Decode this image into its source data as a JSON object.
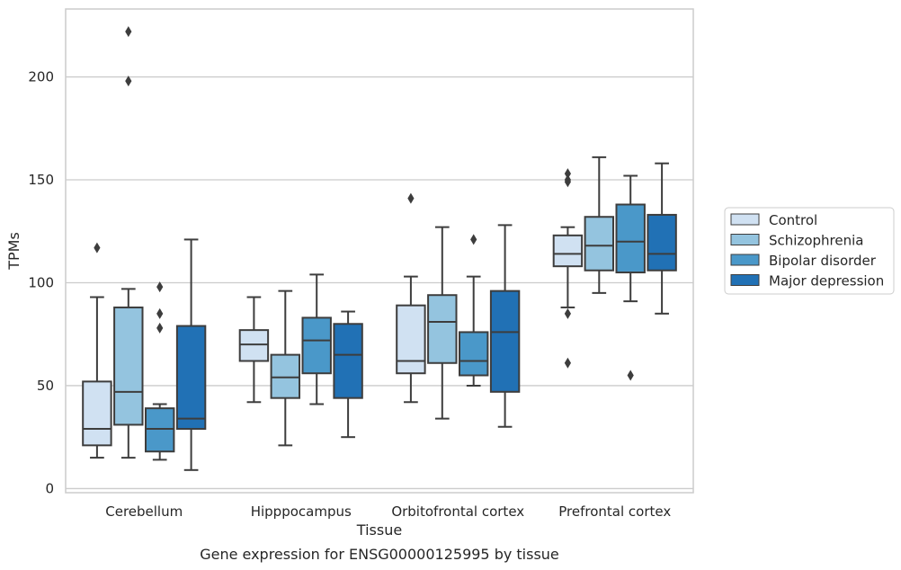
{
  "chart_data": {
    "type": "box",
    "title": "Gene expression for ENSG00000125995 by tissue",
    "xlabel": "Tissue",
    "ylabel": "TPMs",
    "ylim": [
      -2,
      233
    ],
    "yticks": [
      0,
      50,
      100,
      150,
      200
    ],
    "grid": "horizontal",
    "legend_position": "right",
    "categories": [
      "Cerebellum",
      "Hipppocampus",
      "Orbitofrontal cortex",
      "Prefrontal cortex"
    ],
    "series": [
      {
        "name": "Control",
        "color": "#d0e1f2",
        "boxes": [
          {
            "whislo": 15,
            "q1": 21,
            "med": 29,
            "q3": 52,
            "whishi": 93,
            "fliers": [
              117
            ]
          },
          {
            "whislo": 42,
            "q1": 62,
            "med": 70,
            "q3": 77,
            "whishi": 93,
            "fliers": []
          },
          {
            "whislo": 42,
            "q1": 56,
            "med": 62,
            "q3": 89,
            "whishi": 103,
            "fliers": [
              141
            ]
          },
          {
            "whislo": 88,
            "q1": 108,
            "med": 114,
            "q3": 123,
            "whishi": 127,
            "fliers": [
              153,
              150,
              149,
              85,
              61
            ]
          }
        ]
      },
      {
        "name": "Schizophrenia",
        "color": "#94c4df",
        "boxes": [
          {
            "whislo": 15,
            "q1": 31,
            "med": 47,
            "q3": 88,
            "whishi": 97,
            "fliers": [
              222,
              198
            ]
          },
          {
            "whislo": 21,
            "q1": 44,
            "med": 54,
            "q3": 65,
            "whishi": 96,
            "fliers": []
          },
          {
            "whislo": 34,
            "q1": 61,
            "med": 81,
            "q3": 94,
            "whishi": 127,
            "fliers": []
          },
          {
            "whislo": 95,
            "q1": 106,
            "med": 118,
            "q3": 132,
            "whishi": 161,
            "fliers": []
          }
        ]
      },
      {
        "name": "Bipolar disorder",
        "color": "#4a98c9",
        "boxes": [
          {
            "whislo": 14,
            "q1": 18,
            "med": 29,
            "q3": 39,
            "whishi": 41,
            "fliers": [
              98,
              85,
              78
            ]
          },
          {
            "whislo": 41,
            "q1": 56,
            "med": 72,
            "q3": 83,
            "whishi": 104,
            "fliers": []
          },
          {
            "whislo": 50,
            "q1": 55,
            "med": 62,
            "q3": 76,
            "whishi": 103,
            "fliers": [
              121
            ]
          },
          {
            "whislo": 91,
            "q1": 105,
            "med": 120,
            "q3": 138,
            "whishi": 152,
            "fliers": [
              55
            ]
          }
        ]
      },
      {
        "name": "Major depression",
        "color": "#2171b5",
        "boxes": [
          {
            "whislo": 9,
            "q1": 29,
            "med": 34,
            "q3": 79,
            "whishi": 121,
            "fliers": []
          },
          {
            "whislo": 25,
            "q1": 44,
            "med": 65,
            "q3": 80,
            "whishi": 86,
            "fliers": []
          },
          {
            "whislo": 30,
            "q1": 47,
            "med": 76,
            "q3": 96,
            "whishi": 128,
            "fliers": []
          },
          {
            "whislo": 85,
            "q1": 106,
            "med": 114,
            "q3": 133,
            "whishi": 158,
            "fliers": []
          }
        ]
      }
    ]
  }
}
